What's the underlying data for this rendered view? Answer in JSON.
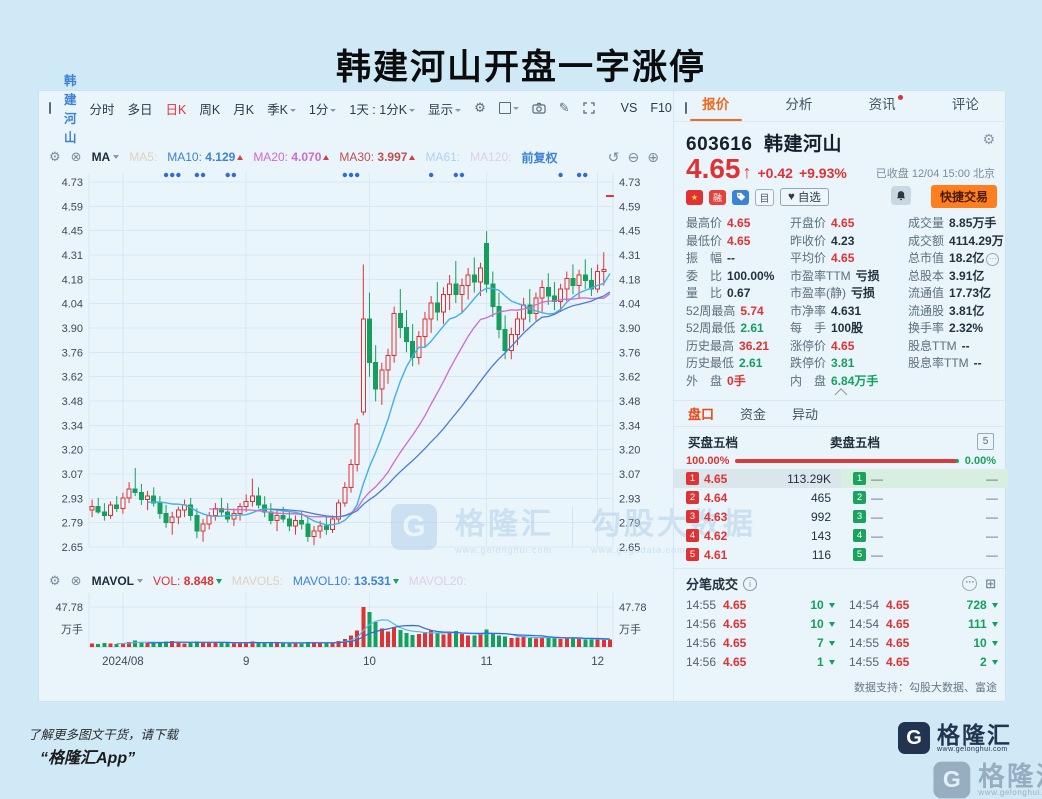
{
  "page": {
    "title": "韩建河山开盘一字涨停",
    "footer_line1": "了解更多图文干货，请下载",
    "footer_line2": "“格隆汇App”",
    "support": "数据支持：勾股大数据、富途"
  },
  "colors": {
    "up": "#e03232",
    "down": "#159f5c",
    "accent": "#f06a1e",
    "link": "#3e82d6",
    "ma10": "#41b1e6",
    "ma20": "#cf6ad0",
    "ma30": "#4a7ed0",
    "grid": "#d6e8f3",
    "event_dot": "#2f6bd8"
  },
  "toolbar": {
    "stock_name": "韩建河山",
    "items": [
      {
        "label": "分时"
      },
      {
        "label": "多日"
      },
      {
        "label": "日K",
        "active": true
      },
      {
        "label": "周K"
      },
      {
        "label": "月K"
      },
      {
        "label": "季K",
        "caret": true
      },
      {
        "label": "1分",
        "caret": true
      },
      {
        "label": "1天 : 1分K",
        "caret": true
      },
      {
        "label": "显示",
        "caret": true
      }
    ],
    "vs_label": "VS",
    "f10_label": "F10"
  },
  "indicators": {
    "ma_group": "MA",
    "ma5_label": "MA5:",
    "ma10_label": "MA10:",
    "ma10": "4.129",
    "ma20_label": "MA20:",
    "ma20": "4.070",
    "ma30_label": "MA30:",
    "ma30": "3.997",
    "ma61_label": "MA61:",
    "ma120_label": "MA120:",
    "fuquan": "前复权",
    "vol_group": "MAVOL",
    "vol_label": "VOL:",
    "vol": "8.848",
    "mavol5_label": "MAVOL5:",
    "mavol10_label": "MAVOL10:",
    "mavol10": "13.531",
    "mavol20_label": "MAVOL20:"
  },
  "quote_panel": {
    "tabs": [
      {
        "label": "报价",
        "active": true
      },
      {
        "label": "分析"
      },
      {
        "label": "资讯",
        "dot": true
      },
      {
        "label": "评论"
      }
    ],
    "code": "603616",
    "name": "韩建河山",
    "price": "4.65",
    "change": "+0.42",
    "change_pct": "+9.93%",
    "status": "已收盘 12/04 15:00 北京",
    "fav_label": "自选",
    "quick_trade_label": "快捷交易",
    "doc_glyph": "目",
    "margin_glyph": "融",
    "stats_rows": [
      [
        {
          "l": "最高价",
          "v": "4.65",
          "c": "up"
        },
        {
          "l": "开盘价",
          "v": "4.65",
          "c": "up"
        },
        {
          "l": "成交量",
          "v": "8.85万手",
          "c": ""
        }
      ],
      [
        {
          "l": "最低价",
          "v": "4.65",
          "c": "up"
        },
        {
          "l": "昨收价",
          "v": "4.23",
          "c": ""
        },
        {
          "l": "成交额",
          "v": "4114.29万",
          "c": ""
        }
      ],
      [
        {
          "l": "振　幅",
          "v": "--",
          "c": ""
        },
        {
          "l": "平均价",
          "v": "4.65",
          "c": "up"
        },
        {
          "l": "总市值",
          "v": "18.2亿",
          "c": "",
          "icon": true
        }
      ],
      [
        {
          "l": "委　比",
          "v": "100.00%",
          "c": ""
        },
        {
          "l": "市盈率TTM",
          "v": "亏损",
          "c": ""
        },
        {
          "l": "总股本",
          "v": "3.91亿",
          "c": ""
        }
      ],
      [
        {
          "l": "量　比",
          "v": "0.67",
          "c": ""
        },
        {
          "l": "市盈率(静)",
          "v": "亏损",
          "c": ""
        },
        {
          "l": "流通值",
          "v": "17.73亿",
          "c": ""
        }
      ],
      [
        {
          "l": "52周最高",
          "v": "5.74",
          "c": "up"
        },
        {
          "l": "市净率",
          "v": "4.631",
          "c": ""
        },
        {
          "l": "流通股",
          "v": "3.81亿",
          "c": ""
        }
      ],
      [
        {
          "l": "52周最低",
          "v": "2.61",
          "c": "down"
        },
        {
          "l": "每　手",
          "v": "100股",
          "c": ""
        },
        {
          "l": "换手率",
          "v": "2.32%",
          "c": ""
        }
      ],
      [
        {
          "l": "历史最高",
          "v": "36.21",
          "c": "up"
        },
        {
          "l": "涨停价",
          "v": "4.65",
          "c": "up"
        },
        {
          "l": "股息TTM",
          "v": "--",
          "c": ""
        }
      ],
      [
        {
          "l": "历史最低",
          "v": "2.61",
          "c": "down"
        },
        {
          "l": "跌停价",
          "v": "3.81",
          "c": "down"
        },
        {
          "l": "股息率TTM",
          "v": "--",
          "c": ""
        }
      ],
      [
        {
          "l": "外　盘",
          "v": "0手",
          "c": "up"
        },
        {
          "l": "内　盘",
          "v": "6.84万手",
          "c": "down"
        },
        null
      ]
    ]
  },
  "depth": {
    "tabs": [
      {
        "label": "盘口",
        "active": true
      },
      {
        "label": "资金"
      },
      {
        "label": "异动"
      }
    ],
    "buy_title": "买盘五档",
    "sell_title": "卖盘五档",
    "level_btn": "5",
    "buy_pct": "100.00%",
    "sell_pct": "0.00%",
    "buy_rows": [
      {
        "n": "1",
        "p": "4.65",
        "v": "113.29K"
      },
      {
        "n": "2",
        "p": "4.64",
        "v": "465"
      },
      {
        "n": "3",
        "p": "4.63",
        "v": "992"
      },
      {
        "n": "4",
        "p": "4.62",
        "v": "143"
      },
      {
        "n": "5",
        "p": "4.61",
        "v": "116"
      }
    ],
    "sell_rows": [
      {
        "n": "1",
        "p": "—",
        "v": "—"
      },
      {
        "n": "2",
        "p": "—",
        "v": "—"
      },
      {
        "n": "3",
        "p": "—",
        "v": "—"
      },
      {
        "n": "4",
        "p": "—",
        "v": "—"
      },
      {
        "n": "5",
        "p": "—",
        "v": "—"
      }
    ]
  },
  "tick_trades": {
    "title": "分笔成交",
    "rows": [
      [
        {
          "t": "14:55",
          "p": "4.65",
          "v": "10"
        },
        {
          "t": "14:54",
          "p": "4.65",
          "v": "728"
        }
      ],
      [
        {
          "t": "14:56",
          "p": "4.65",
          "v": "10"
        },
        {
          "t": "14:54",
          "p": "4.65",
          "v": "111"
        }
      ],
      [
        {
          "t": "14:56",
          "p": "4.65",
          "v": "7"
        },
        {
          "t": "14:55",
          "p": "4.65",
          "v": "10"
        }
      ],
      [
        {
          "t": "14:56",
          "p": "4.65",
          "v": "1"
        },
        {
          "t": "14:55",
          "p": "4.65",
          "v": "2"
        }
      ]
    ]
  },
  "watermark": {
    "brand": "格隆汇",
    "brand_url": "www.gelonghui.com",
    "data_brand": "勾股大数据",
    "data_url": "www.gogudata.com",
    "g": "G"
  },
  "logo": {
    "g": "G",
    "name": "格隆汇",
    "url": "www.gelonghui.com"
  },
  "chart_data": {
    "type": "candlestick",
    "symbol": "603616 韩建河山",
    "period": "日K 前复权",
    "price_axis_labels": [
      "4.73",
      "4.59",
      "4.45",
      "4.31",
      "4.18",
      "4.04",
      "3.90",
      "3.76",
      "3.62",
      "3.48",
      "3.34",
      "3.20",
      "3.07",
      "2.93",
      "2.79",
      "2.65"
    ],
    "price_min": 2.65,
    "price_max": 4.73,
    "xticks": [
      {
        "label": "2024/08",
        "index": 5
      },
      {
        "label": "9",
        "index": 25
      },
      {
        "label": "10",
        "index": 45
      },
      {
        "label": "11",
        "index": 64
      },
      {
        "label": "12",
        "index": 82
      }
    ],
    "volume_axis": {
      "max": 47.78,
      "max_label": "47.78",
      "unit": "万手"
    },
    "event_marker_indices": [
      12,
      13,
      14,
      17,
      18,
      22,
      23,
      41,
      42,
      43,
      55,
      59,
      60,
      76,
      79,
      80
    ],
    "last_candle_note": "2024/12/04 一字涨停 4.65",
    "ohlc": [
      [
        2.86,
        2.92,
        2.82,
        2.88
      ],
      [
        2.88,
        2.93,
        2.84,
        2.85
      ],
      [
        2.85,
        2.9,
        2.8,
        2.83
      ],
      [
        2.83,
        2.91,
        2.81,
        2.89
      ],
      [
        2.89,
        2.94,
        2.85,
        2.87
      ],
      [
        2.87,
        2.96,
        2.84,
        2.93
      ],
      [
        2.93,
        3.02,
        2.9,
        2.98
      ],
      [
        2.98,
        3.1,
        2.94,
        2.96
      ],
      [
        2.96,
        3.01,
        2.89,
        2.92
      ],
      [
        2.92,
        2.97,
        2.86,
        2.94
      ],
      [
        2.94,
        2.99,
        2.88,
        2.9
      ],
      [
        2.9,
        2.94,
        2.81,
        2.84
      ],
      [
        2.84,
        2.89,
        2.76,
        2.79
      ],
      [
        2.79,
        2.85,
        2.72,
        2.82
      ],
      [
        2.82,
        2.88,
        2.78,
        2.86
      ],
      [
        2.86,
        2.92,
        2.82,
        2.89
      ],
      [
        2.89,
        2.93,
        2.8,
        2.83
      ],
      [
        2.83,
        2.87,
        2.7,
        2.74
      ],
      [
        2.74,
        2.81,
        2.68,
        2.78
      ],
      [
        2.78,
        2.85,
        2.75,
        2.83
      ],
      [
        2.83,
        2.9,
        2.8,
        2.87
      ],
      [
        2.87,
        2.93,
        2.83,
        2.85
      ],
      [
        2.85,
        2.9,
        2.79,
        2.81
      ],
      [
        2.81,
        2.87,
        2.77,
        2.84
      ],
      [
        2.84,
        2.9,
        2.8,
        2.88
      ],
      [
        2.88,
        2.95,
        2.85,
        2.91
      ],
      [
        2.91,
        3.04,
        2.88,
        2.94
      ],
      [
        2.94,
        2.99,
        2.87,
        2.89
      ],
      [
        2.89,
        2.94,
        2.82,
        2.85
      ],
      [
        2.85,
        2.9,
        2.78,
        2.8
      ],
      [
        2.8,
        2.86,
        2.74,
        2.83
      ],
      [
        2.83,
        2.88,
        2.79,
        2.81
      ],
      [
        2.81,
        2.85,
        2.74,
        2.77
      ],
      [
        2.77,
        2.83,
        2.72,
        2.8
      ],
      [
        2.8,
        2.85,
        2.75,
        2.78
      ],
      [
        2.78,
        2.82,
        2.68,
        2.71
      ],
      [
        2.71,
        2.77,
        2.66,
        2.74
      ],
      [
        2.74,
        2.8,
        2.7,
        2.77
      ],
      [
        2.77,
        2.82,
        2.72,
        2.75
      ],
      [
        2.75,
        2.83,
        2.73,
        2.81
      ],
      [
        2.81,
        2.92,
        2.79,
        2.9
      ],
      [
        2.9,
        3.02,
        2.88,
        2.99
      ],
      [
        2.99,
        3.15,
        2.96,
        3.12
      ],
      [
        3.12,
        3.38,
        3.08,
        3.35
      ],
      [
        3.42,
        4.26,
        3.4,
        3.95
      ],
      [
        3.95,
        4.1,
        3.62,
        3.7
      ],
      [
        3.7,
        3.8,
        3.48,
        3.55
      ],
      [
        3.55,
        3.7,
        3.46,
        3.66
      ],
      [
        3.66,
        3.78,
        3.58,
        3.74
      ],
      [
        3.74,
        4.02,
        3.7,
        3.98
      ],
      [
        3.98,
        4.12,
        3.84,
        3.9
      ],
      [
        3.9,
        4.0,
        3.76,
        3.82
      ],
      [
        3.82,
        3.92,
        3.68,
        3.73
      ],
      [
        3.73,
        3.88,
        3.69,
        3.85
      ],
      [
        3.85,
        3.99,
        3.79,
        3.95
      ],
      [
        3.95,
        4.08,
        3.87,
        4.04
      ],
      [
        4.04,
        4.16,
        3.94,
        3.99
      ],
      [
        3.99,
        4.13,
        3.92,
        4.09
      ],
      [
        4.09,
        4.2,
        4.0,
        4.15
      ],
      [
        4.15,
        4.28,
        4.04,
        4.09
      ],
      [
        4.09,
        4.18,
        3.98,
        4.14
      ],
      [
        4.14,
        4.24,
        4.06,
        4.2
      ],
      [
        4.2,
        4.3,
        4.1,
        4.16
      ],
      [
        4.16,
        4.27,
        4.08,
        4.24
      ],
      [
        4.38,
        4.45,
        4.1,
        4.15
      ],
      [
        4.15,
        4.22,
        3.96,
        4.02
      ],
      [
        4.02,
        4.1,
        3.84,
        3.89
      ],
      [
        3.89,
        3.97,
        3.72,
        3.77
      ],
      [
        3.77,
        3.9,
        3.72,
        3.86
      ],
      [
        3.86,
        3.99,
        3.8,
        3.95
      ],
      [
        3.95,
        4.07,
        3.88,
        4.03
      ],
      [
        4.03,
        4.12,
        3.93,
        3.98
      ],
      [
        3.98,
        4.1,
        3.94,
        4.07
      ],
      [
        4.07,
        4.17,
        3.99,
        4.13
      ],
      [
        4.13,
        4.21,
        4.03,
        4.08
      ],
      [
        4.08,
        4.16,
        4.0,
        4.05
      ],
      [
        4.05,
        4.15,
        3.99,
        4.12
      ],
      [
        4.12,
        4.22,
        4.05,
        4.18
      ],
      [
        4.18,
        4.26,
        4.09,
        4.14
      ],
      [
        4.14,
        4.23,
        4.07,
        4.2
      ],
      [
        4.2,
        4.29,
        4.12,
        4.17
      ],
      [
        4.17,
        4.24,
        4.08,
        4.12
      ],
      [
        4.12,
        4.26,
        4.1,
        4.22
      ],
      [
        4.22,
        4.33,
        4.14,
        4.23
      ],
      [
        4.65,
        4.65,
        4.65,
        4.65
      ]
    ],
    "volumes": [
      4.2,
      3.8,
      4.5,
      4.0,
      3.6,
      4.8,
      6.2,
      7.5,
      5.4,
      4.6,
      4.9,
      5.8,
      6.4,
      7.2,
      5.1,
      4.4,
      4.7,
      6.8,
      5.9,
      4.8,
      5.2,
      5.6,
      4.9,
      4.3,
      4.6,
      5.1,
      6.5,
      5.3,
      4.7,
      5.5,
      4.9,
      4.2,
      4.6,
      5.0,
      4.4,
      5.8,
      6.1,
      4.9,
      4.5,
      5.2,
      7.4,
      9.8,
      14.0,
      20.0,
      47.78,
      42.0,
      30.0,
      22.0,
      18.5,
      24.0,
      20.5,
      17.0,
      14.5,
      15.5,
      18.0,
      19.5,
      16.0,
      15.0,
      17.5,
      19.0,
      15.5,
      14.0,
      13.5,
      15.0,
      21.0,
      17.0,
      14.0,
      12.5,
      10.5,
      11.5,
      13.0,
      11.0,
      10.0,
      11.5,
      12.0,
      10.5,
      9.5,
      10.5,
      11.0,
      9.5,
      9.0,
      8.8,
      9.5,
      8.9,
      8.85
    ]
  }
}
